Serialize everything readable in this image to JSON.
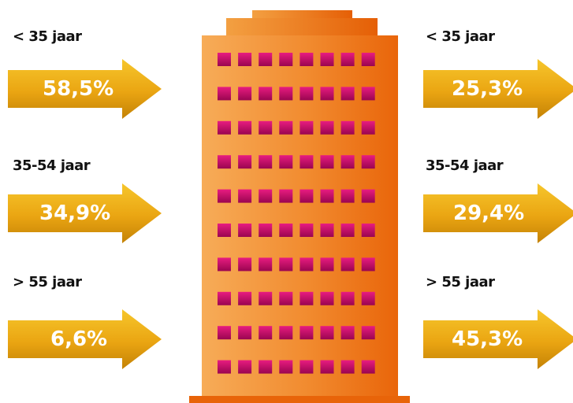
{
  "left": {
    "groups": [
      {
        "label": "< 35 jaar",
        "value": "58,5%"
      },
      {
        "label": "35-54 jaar",
        "value": "34,9%"
      },
      {
        "label": "> 55 jaar",
        "value": "6,6%"
      }
    ]
  },
  "right": {
    "groups": [
      {
        "label": "< 35 jaar",
        "value": "25,3%"
      },
      {
        "label": "35-54 jaar",
        "value": "29,4%"
      },
      {
        "label": "> 55 jaar",
        "value": "45,3%"
      }
    ]
  },
  "building": {
    "window_rows": 10,
    "window_cols": 8
  },
  "colors": {
    "arrow_light": "#f2bb1c",
    "arrow_dark": "#c98a08",
    "building_light": "#f6a64f",
    "building_dark": "#ea6a0a",
    "window_top": "#e5177d",
    "window_bottom": "#9c0552"
  }
}
